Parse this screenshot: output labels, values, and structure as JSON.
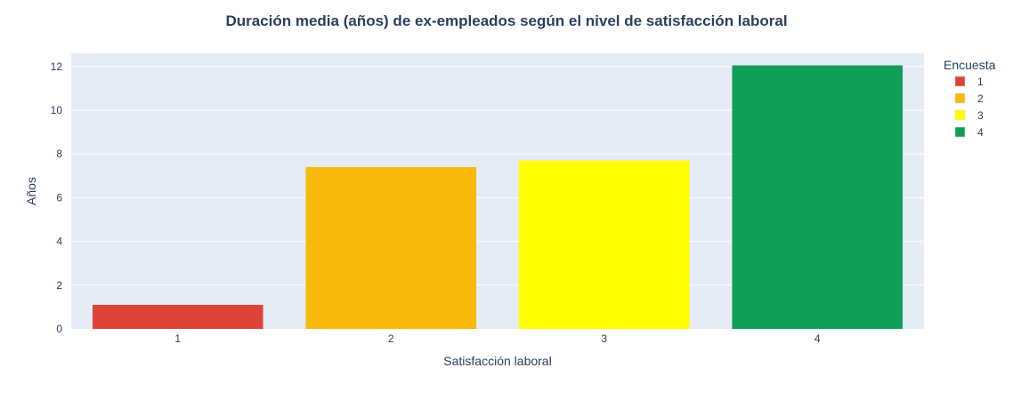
{
  "chart_data": {
    "type": "bar",
    "title": "Duración media (años) de ex-empleados según el nivel de satisfacción laboral",
    "xlabel": "Satisfacción laboral",
    "ylabel": "Años",
    "categories": [
      "1",
      "2",
      "3",
      "4"
    ],
    "values": [
      1.1,
      7.4,
      7.7,
      12.05
    ],
    "colors": [
      "#dc4438",
      "#f9b90a",
      "#ffff00",
      "#119e58"
    ],
    "ylim": [
      0,
      12.6
    ],
    "yticks": [
      "0",
      "2",
      "4",
      "6",
      "8",
      "10",
      "12"
    ],
    "ytick_values": [
      0,
      2,
      4,
      6,
      8,
      10,
      12
    ],
    "grid": true,
    "plot_background": "#e5ecf6",
    "legend": {
      "title": "Encuesta",
      "placement": "right",
      "entries": [
        "1",
        "2",
        "3",
        "4"
      ]
    }
  }
}
